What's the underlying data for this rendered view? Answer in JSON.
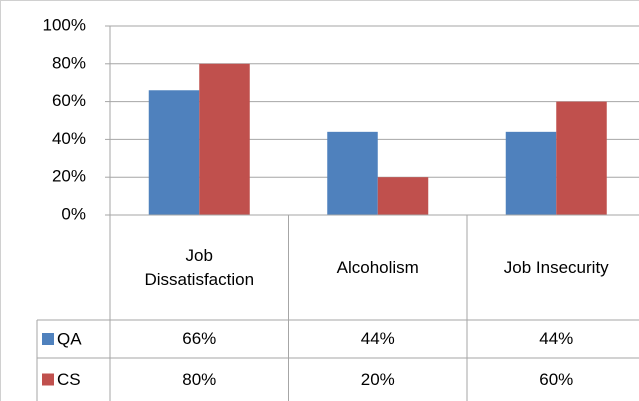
{
  "chart_data": {
    "type": "bar",
    "categories": [
      "Job Dissatisfaction",
      "Alcoholism",
      "Job Insecurity"
    ],
    "series": [
      {
        "name": "QA",
        "color": "#4f81bd",
        "values": [
          66,
          44,
          44
        ],
        "value_labels": [
          "66%",
          "44%",
          "44%"
        ]
      },
      {
        "name": "CS",
        "color": "#c0504d",
        "values": [
          80,
          20,
          60
        ],
        "value_labels": [
          "80%",
          "20%",
          "60%"
        ]
      }
    ],
    "ylim": [
      0,
      100
    ],
    "yticks": [
      {
        "value": 0,
        "label": "0%"
      },
      {
        "value": 20,
        "label": "20%"
      },
      {
        "value": 40,
        "label": "40%"
      },
      {
        "value": 60,
        "label": "60%"
      },
      {
        "value": 80,
        "label": "80%"
      },
      {
        "value": 100,
        "label": "100%"
      }
    ],
    "grid": true,
    "legend": "table"
  }
}
